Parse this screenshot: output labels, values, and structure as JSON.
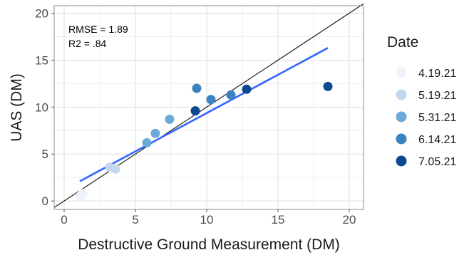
{
  "chart_data": {
    "type": "scatter",
    "xlabel": "Destructive Ground Measurement (DM)",
    "ylabel": "UAS (DM)",
    "xlim": [
      -0.7,
      21.0
    ],
    "ylim": [
      -0.9,
      20.8
    ],
    "x_ticks": [
      0,
      5,
      10,
      15,
      20
    ],
    "y_ticks": [
      0,
      5,
      10,
      15,
      20
    ],
    "x_tick_labels": [
      "0",
      "5",
      "10",
      "15",
      "20"
    ],
    "y_tick_labels": [
      "0",
      "5",
      "10",
      "15",
      "20"
    ],
    "grid": true,
    "legend_position": "right",
    "legend_title": "Date",
    "series": [
      {
        "name": "4.19.21",
        "color": "#eef3fb",
        "points": [
          {
            "x": 1.1,
            "y": 0.5
          },
          {
            "x": 1.3,
            "y": 0.8
          }
        ]
      },
      {
        "name": "5.19.21",
        "color": "#c3d8ec",
        "points": [
          {
            "x": 3.2,
            "y": 3.6
          },
          {
            "x": 3.6,
            "y": 3.4
          }
        ]
      },
      {
        "name": "5.31.21",
        "color": "#6aaad6",
        "points": [
          {
            "x": 5.8,
            "y": 6.2
          },
          {
            "x": 6.4,
            "y": 7.2
          },
          {
            "x": 7.4,
            "y": 8.7
          }
        ]
      },
      {
        "name": "6.14.21",
        "color": "#3a83c0",
        "points": [
          {
            "x": 9.3,
            "y": 12.0
          },
          {
            "x": 10.3,
            "y": 10.8
          },
          {
            "x": 11.7,
            "y": 11.3
          }
        ]
      },
      {
        "name": "7.05.21",
        "color": "#0b4a8f",
        "points": [
          {
            "x": 9.2,
            "y": 9.6
          },
          {
            "x": 12.8,
            "y": 11.9
          },
          {
            "x": 18.5,
            "y": 12.2
          }
        ]
      }
    ],
    "identity_line": {
      "x": [
        -0.7,
        21.0
      ],
      "y": [
        -0.7,
        21.0
      ],
      "color": "#222222"
    },
    "fit_line": {
      "x": [
        1.1,
        18.5
      ],
      "y": [
        2.1,
        16.3
      ],
      "color": "#3366ff"
    },
    "annotations": [
      "RMSE = 1.89",
      "R2 = .84"
    ]
  }
}
